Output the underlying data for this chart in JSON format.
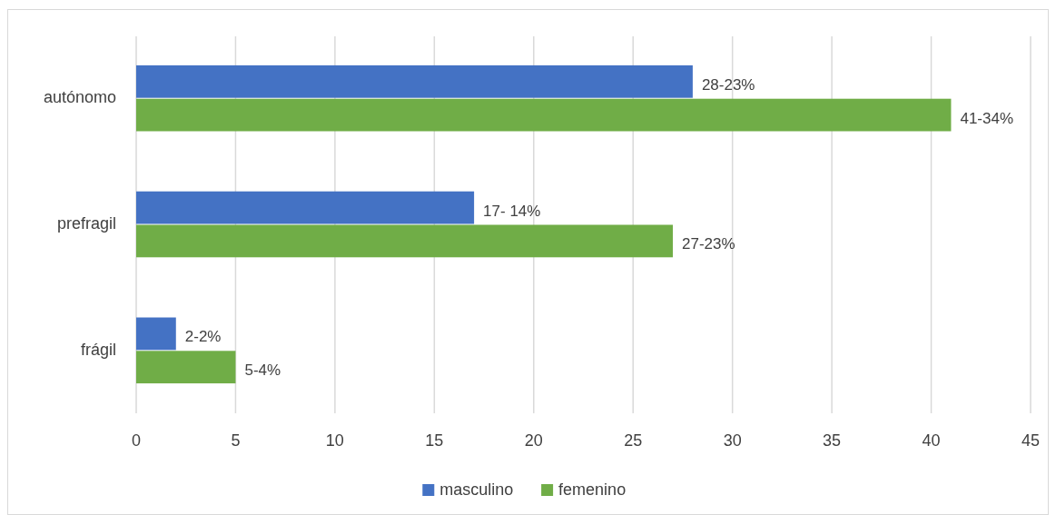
{
  "chart_data": {
    "type": "bar",
    "orientation": "horizontal",
    "categories": [
      "autónomo",
      "prefragil",
      "frágil"
    ],
    "series": [
      {
        "name": "masculino",
        "color": "#4472c4",
        "values": [
          28,
          17,
          2
        ],
        "value_labels": [
          "28-23%",
          "17- 14%",
          "2-2%"
        ]
      },
      {
        "name": "femenino",
        "color": "#70ad47",
        "values": [
          41,
          27,
          5
        ],
        "value_labels": [
          "41-34%",
          "27-23%",
          "5-4%"
        ]
      }
    ],
    "xlim": [
      0,
      45
    ],
    "xticks": [
      0,
      5,
      10,
      15,
      20,
      25,
      30,
      35,
      40,
      45
    ],
    "grid": "x",
    "legend": "bottom"
  }
}
